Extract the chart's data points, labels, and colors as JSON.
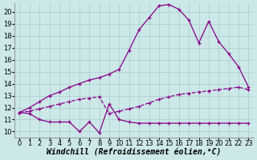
{
  "background_color": "#cce8e8",
  "grid_color": "#aacccc",
  "line_color": "#880088",
  "xlabel": "Windchill (Refroidissement éolien,°C)",
  "ylabel_ticks": [
    10,
    11,
    12,
    13,
    14,
    15,
    16,
    17,
    18,
    19,
    20
  ],
  "xlabel_ticks": [
    0,
    1,
    2,
    3,
    4,
    5,
    6,
    7,
    8,
    9,
    10,
    11,
    12,
    13,
    14,
    15,
    16,
    17,
    18,
    19,
    20,
    21,
    22,
    23
  ],
  "xlim": [
    -0.5,
    23.5
  ],
  "ylim": [
    9.5,
    20.7
  ],
  "line_upper_x": [
    0,
    1,
    2,
    3,
    4,
    5,
    6,
    7,
    8,
    9,
    10,
    11,
    12,
    13,
    14,
    15,
    16,
    17,
    18,
    19,
    20,
    21,
    22,
    23
  ],
  "line_upper_y": [
    11.6,
    12.0,
    12.5,
    13.0,
    13.3,
    13.7,
    14.0,
    14.3,
    14.5,
    14.8,
    15.2,
    16.8,
    18.5,
    19.5,
    20.5,
    20.6,
    20.2,
    19.3,
    17.4,
    19.2,
    17.5,
    16.5,
    15.4,
    13.7
  ],
  "line_lower_x": [
    0,
    1,
    2,
    3,
    4,
    5,
    6,
    7,
    8,
    9,
    10,
    11,
    12,
    13,
    14,
    15,
    16,
    17,
    18,
    19,
    20,
    21,
    22,
    23
  ],
  "line_lower_y": [
    11.6,
    11.5,
    11.0,
    10.8,
    10.8,
    10.8,
    10.0,
    10.8,
    9.9,
    12.3,
    11.0,
    10.8,
    10.7,
    10.7,
    10.7,
    10.7,
    10.7,
    10.7,
    10.7,
    10.7,
    10.7,
    10.7,
    10.7,
    10.7
  ],
  "line_mid_x": [
    0,
    1,
    2,
    3,
    4,
    5,
    6,
    7,
    8,
    9,
    10,
    11,
    12,
    13,
    14,
    15,
    16,
    17,
    18,
    19,
    20,
    21,
    22,
    23
  ],
  "line_mid_y": [
    11.6,
    11.7,
    11.9,
    12.1,
    12.3,
    12.5,
    12.7,
    12.8,
    12.9,
    11.5,
    11.7,
    11.9,
    12.1,
    12.4,
    12.7,
    12.9,
    13.1,
    13.2,
    13.3,
    13.4,
    13.5,
    13.6,
    13.7,
    13.5
  ],
  "font_size_label": 7,
  "font_size_tick": 6
}
